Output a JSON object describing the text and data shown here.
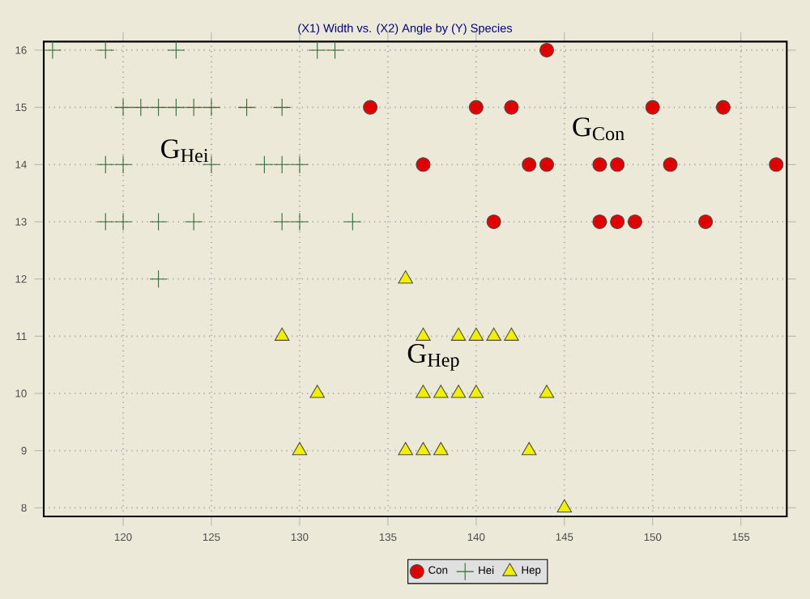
{
  "chart_data": {
    "type": "scatter",
    "title": "(X1) Width vs. (X2) Angle by (Y) Species",
    "xlim": [
      115.5,
      157.6
    ],
    "ylim": [
      7.85,
      16.15
    ],
    "xticks": [
      120,
      125,
      130,
      135,
      140,
      145,
      150,
      155
    ],
    "yticks": [
      8,
      9,
      10,
      11,
      12,
      13,
      14,
      15,
      16
    ],
    "grid": true,
    "legend": "bottom",
    "series": [
      {
        "name": "Con",
        "color": "#e00000",
        "marker": "circle",
        "x": [
          144,
          134,
          140,
          142,
          150,
          154,
          137,
          143,
          144,
          147,
          148,
          151,
          157,
          141,
          147,
          148,
          149,
          153
        ],
        "values": [
          16,
          15,
          15,
          15,
          15,
          15,
          14,
          14,
          14,
          14,
          14,
          14,
          14,
          13,
          13,
          13,
          13,
          13
        ]
      },
      {
        "name": "Hei",
        "color": "#336633",
        "marker": "cross",
        "x": [
          116,
          119,
          123,
          131,
          132,
          120,
          121,
          122,
          123,
          124,
          125,
          127,
          129,
          119,
          120,
          125,
          128,
          129,
          130,
          119,
          120,
          122,
          124,
          129,
          130,
          133,
          122
        ],
        "values": [
          16,
          16,
          16,
          16,
          16,
          15,
          15,
          15,
          15,
          15,
          15,
          15,
          15,
          14,
          14,
          14,
          14,
          14,
          14,
          13,
          13,
          13,
          13,
          13,
          13,
          13,
          12
        ]
      },
      {
        "name": "Hep",
        "color": "#f0f000",
        "marker": "triangle",
        "x": [
          136,
          129,
          137,
          139,
          140,
          141,
          142,
          131,
          137,
          138,
          139,
          140,
          144,
          130,
          136,
          137,
          138,
          143,
          145
        ],
        "values": [
          12,
          11,
          11,
          11,
          11,
          11,
          11,
          10,
          10,
          10,
          10,
          10,
          10,
          9,
          9,
          9,
          9,
          9,
          8
        ]
      }
    ],
    "annotations": [
      "G$_{Hei}$",
      "G$_{Con}$",
      "G$_{Hep}$"
    ]
  }
}
